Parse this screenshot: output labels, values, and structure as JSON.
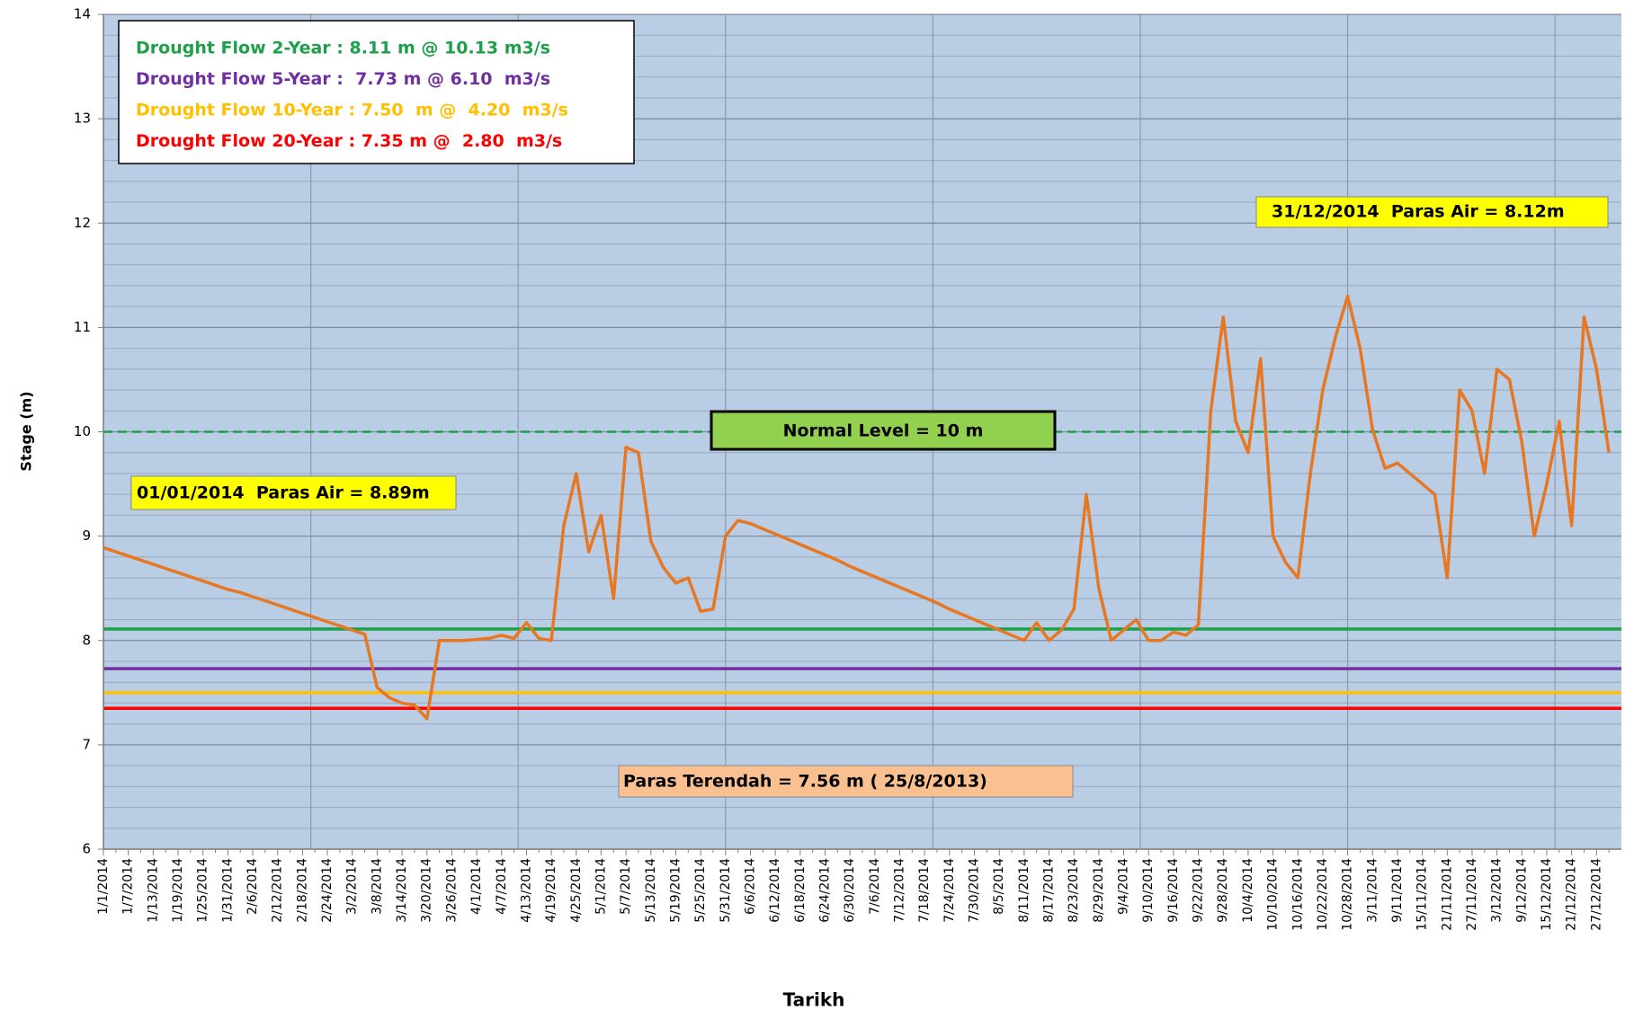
{
  "chart_data": {
    "type": "line",
    "x_label": "Tarikh",
    "y_label": "Stage (m)",
    "ylim": [
      6,
      14
    ],
    "yticks": [
      6,
      7,
      8,
      9,
      10,
      11,
      12,
      13,
      14
    ],
    "grid": true,
    "background": "#b9cde5",
    "categories": [
      "1/1/2014",
      null,
      "1/7/2014",
      null,
      "1/13/2014",
      null,
      "1/19/2014",
      null,
      "1/25/2014",
      null,
      "1/31/2014",
      null,
      "2/6/2014",
      null,
      "2/12/2014",
      null,
      "2/18/2014",
      null,
      "2/24/2014",
      null,
      "3/2/2014",
      null,
      "3/8/2014",
      null,
      "3/14/2014",
      null,
      "3/20/2014",
      null,
      "3/26/2014",
      null,
      "4/1/2014",
      null,
      "4/7/2014",
      null,
      "4/13/2014",
      null,
      "4/19/2014",
      null,
      "4/25/2014",
      null,
      "5/1/2014",
      null,
      "5/7/2014",
      null,
      "5/13/2014",
      null,
      "5/19/2014",
      null,
      "5/25/2014",
      null,
      "5/31/2014",
      null,
      "6/6/2014",
      null,
      "6/12/2014",
      null,
      "6/18/2014",
      null,
      "6/24/2014",
      null,
      "6/30/2014",
      null,
      "7/6/2014",
      null,
      "7/12/2014",
      null,
      "7/18/2014",
      null,
      "7/24/2014",
      null,
      "7/30/2014",
      null,
      "8/5/2014",
      null,
      "8/11/2014",
      null,
      "8/17/2014",
      null,
      "8/23/2014",
      null,
      "8/29/2014",
      null,
      "9/4/2014",
      null,
      "9/10/2014",
      null,
      "9/16/2014",
      null,
      "9/22/2014",
      null,
      "9/28/2014",
      null,
      "10/4/2014",
      null,
      "10/10/2014",
      null,
      "10/16/2014",
      null,
      "10/22/2014",
      null,
      "10/28/2014",
      null,
      "3/11/2014",
      null,
      "9/11/2014",
      null,
      "15/11/2014",
      null,
      "21/11/2014",
      null,
      "27/11/2014",
      null,
      "3/12/2014",
      null,
      "9/12/2014",
      null,
      "15/12/2014",
      null,
      "21/12/2014",
      null,
      "27/12/2014",
      null
    ],
    "series": [
      {
        "color": "#e87722",
        "values": [
          8.89,
          8.85,
          8.81,
          8.77,
          8.73,
          8.69,
          8.65,
          8.61,
          8.57,
          8.53,
          8.49,
          8.46,
          8.42,
          8.38,
          8.34,
          8.3,
          8.26,
          8.22,
          8.18,
          8.14,
          8.1,
          8.06,
          7.55,
          7.45,
          7.4,
          7.38,
          7.25,
          8.0,
          8.0,
          8.0,
          8.01,
          8.02,
          8.05,
          8.02,
          8.17,
          8.02,
          8.0,
          9.1,
          9.6,
          8.85,
          9.2,
          8.4,
          9.85,
          9.8,
          8.95,
          8.7,
          8.55,
          8.6,
          8.28,
          8.3,
          9.0,
          9.15,
          9.12,
          9.07,
          9.02,
          8.97,
          8.92,
          8.87,
          8.82,
          8.77,
          8.71,
          8.66,
          8.61,
          8.56,
          8.51,
          8.46,
          8.41,
          8.36,
          8.3,
          8.25,
          8.2,
          8.15,
          8.1,
          8.05,
          8.0,
          8.17,
          8.0,
          8.1,
          8.3,
          9.4,
          8.5,
          8.0,
          8.1,
          8.2,
          8.0,
          8.0,
          8.08,
          8.05,
          8.15,
          10.2,
          11.1,
          10.1,
          9.8,
          10.7,
          9.0,
          8.75,
          8.6,
          9.6,
          10.4,
          10.9,
          11.3,
          10.8,
          10.02,
          9.65,
          9.7,
          9.6,
          9.5,
          9.4,
          8.6,
          10.4,
          10.2,
          9.6,
          10.6,
          10.5,
          9.9,
          9.0,
          9.5,
          10.1,
          9.1,
          11.1,
          10.6,
          9.8
        ]
      }
    ],
    "reference_lines": [
      {
        "name": "Drought Flow 2-Year : 8.11 m @ 10.13 m3/s",
        "value": 8.11,
        "color": "#1ea04a"
      },
      {
        "name": "Drought Flow 5-Year :  7.73 m @ 6.10  m3/s",
        "value": 7.73,
        "color": "#7030a0"
      },
      {
        "name": "Drought Flow 10-Year : 7.50  m @  4.20  m3/s",
        "value": 7.5,
        "color": "#ffc000"
      },
      {
        "name": "Drought Flow 20-Year : 7.35 m @  2.80  m3/s",
        "value": 7.35,
        "color": "#ff0000"
      }
    ],
    "normal_line": {
      "label": "Normal Level = 10 m",
      "value": 10,
      "color": "#1ea04a",
      "dashed": true
    },
    "annotations": [
      "01/01/2014  Paras Air = 8.89m",
      "31/12/2014  Paras Air = 8.12m",
      "Paras Terendah = 7.56 m ( 25/8/2013)"
    ]
  }
}
